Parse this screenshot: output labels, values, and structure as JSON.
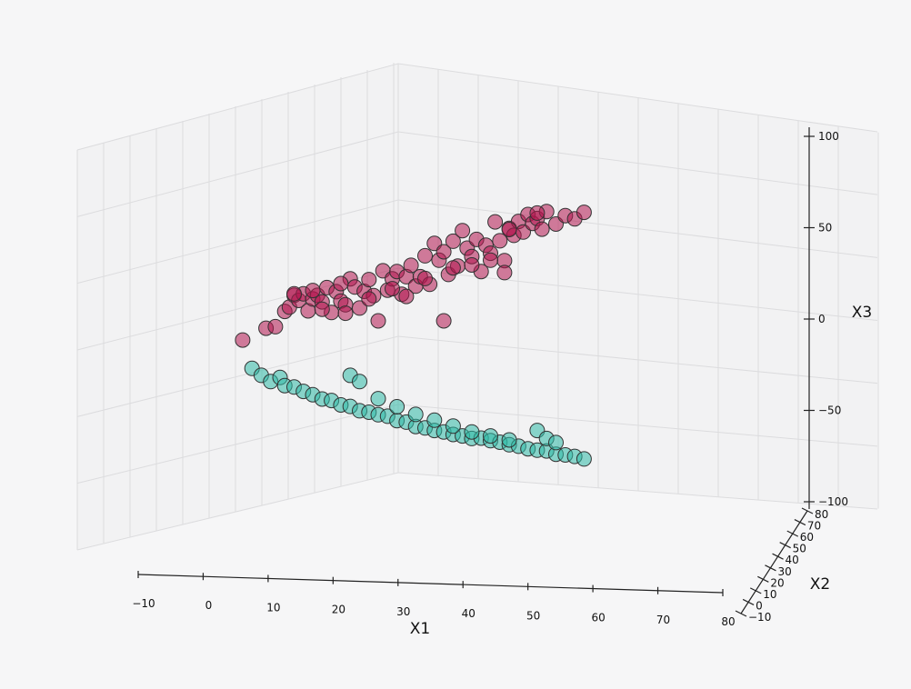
{
  "chart_data": {
    "type": "scatter",
    "dimensions": 3,
    "title": "",
    "xlabel": "X1",
    "ylabel": "X2",
    "zlabel": "X3",
    "xlim": [
      -10,
      80
    ],
    "ylim": [
      -10,
      80
    ],
    "zlim": [
      -100,
      100
    ],
    "xticks": [
      "−10",
      "0",
      "10",
      "20",
      "30",
      "40",
      "50",
      "60",
      "70",
      "80"
    ],
    "yticks": [
      "−10",
      "0",
      "10",
      "20",
      "30",
      "40",
      "50",
      "60",
      "70",
      "80"
    ],
    "zticks": [
      "−100",
      "−50",
      "0",
      "50",
      "100"
    ],
    "grid": true,
    "series": [
      {
        "color": "#b3154f",
        "points": [
          [
            3,
            15,
            -13
          ],
          [
            8,
            20,
            -6
          ],
          [
            10,
            22,
            -5
          ],
          [
            12,
            18,
            3
          ],
          [
            13,
            25,
            6
          ],
          [
            14,
            20,
            12
          ],
          [
            15,
            28,
            10
          ],
          [
            16,
            22,
            13
          ],
          [
            17,
            25,
            4
          ],
          [
            18,
            30,
            11
          ],
          [
            19,
            20,
            12
          ],
          [
            20,
            26,
            9
          ],
          [
            21,
            28,
            17
          ],
          [
            22,
            24,
            3
          ],
          [
            23,
            30,
            15
          ],
          [
            24,
            22,
            9
          ],
          [
            25,
            32,
            8
          ],
          [
            26,
            20,
            21
          ],
          [
            27,
            25,
            17
          ],
          [
            28,
            30,
            6
          ],
          [
            29,
            28,
            15
          ],
          [
            30,
            34,
            22
          ],
          [
            31,
            22,
            12
          ],
          [
            32,
            30,
            -1
          ],
          [
            33,
            26,
            26
          ],
          [
            34,
            32,
            16
          ],
          [
            35,
            30,
            22
          ],
          [
            36,
            40,
            27
          ],
          [
            37,
            34,
            14
          ],
          [
            38,
            28,
            23
          ],
          [
            39,
            36,
            30
          ],
          [
            40,
            30,
            18
          ],
          [
            41,
            38,
            24
          ],
          [
            42,
            34,
            35
          ],
          [
            43,
            40,
            20
          ],
          [
            44,
            36,
            42
          ],
          [
            45,
            38,
            33
          ],
          [
            46,
            42,
            38
          ],
          [
            47,
            36,
            25
          ],
          [
            48,
            44,
            44
          ],
          [
            49,
            40,
            30
          ],
          [
            50,
            46,
            50
          ],
          [
            51,
            42,
            40
          ],
          [
            52,
            48,
            36
          ],
          [
            53,
            44,
            45
          ],
          [
            54,
            50,
            28
          ],
          [
            55,
            46,
            42
          ],
          [
            56,
            50,
            38
          ],
          [
            57,
            48,
            55
          ],
          [
            58,
            52,
            45
          ],
          [
            59,
            50,
            34
          ],
          [
            60,
            54,
            52
          ],
          [
            61,
            52,
            48
          ],
          [
            62,
            56,
            56
          ],
          [
            63,
            54,
            50
          ],
          [
            64,
            58,
            60
          ],
          [
            65,
            56,
            55
          ],
          [
            66,
            60,
            58
          ],
          [
            67,
            58,
            52
          ],
          [
            68,
            62,
            62
          ],
          [
            70,
            60,
            55
          ],
          [
            72,
            64,
            60
          ],
          [
            74,
            62,
            58
          ],
          [
            76,
            66,
            62
          ],
          [
            60,
            40,
            50
          ],
          [
            59,
            36,
            26
          ],
          [
            66,
            30,
            58
          ],
          [
            46,
            20,
            -2
          ],
          [
            20,
            16,
            4
          ],
          [
            25,
            18,
            2
          ],
          [
            30,
            20,
            10
          ],
          [
            35,
            24,
            16
          ],
          [
            38,
            26,
            12
          ],
          [
            42,
            28,
            22
          ],
          [
            48,
            30,
            28
          ],
          [
            52,
            34,
            30
          ],
          [
            56,
            38,
            33
          ],
          [
            14,
            32,
            14
          ],
          [
            18,
            34,
            16
          ],
          [
            24,
            36,
            20
          ]
        ]
      },
      {
        "color": "#2fb9a6",
        "points": [
          [
            5,
            20,
            -28
          ],
          [
            7,
            18,
            -32
          ],
          [
            9,
            22,
            -35
          ],
          [
            11,
            20,
            -33
          ],
          [
            12,
            24,
            -37
          ],
          [
            14,
            22,
            -38
          ],
          [
            16,
            26,
            -40
          ],
          [
            18,
            24,
            -42
          ],
          [
            20,
            28,
            -44
          ],
          [
            22,
            26,
            -45
          ],
          [
            24,
            30,
            -47
          ],
          [
            26,
            28,
            -48
          ],
          [
            28,
            32,
            -50
          ],
          [
            30,
            30,
            -51
          ],
          [
            32,
            34,
            -52
          ],
          [
            34,
            32,
            -53
          ],
          [
            36,
            36,
            -55
          ],
          [
            38,
            34,
            -56
          ],
          [
            40,
            38,
            -58
          ],
          [
            42,
            36,
            -59
          ],
          [
            44,
            40,
            -60
          ],
          [
            46,
            38,
            -61
          ],
          [
            48,
            42,
            -62
          ],
          [
            50,
            40,
            -63
          ],
          [
            52,
            44,
            -64
          ],
          [
            54,
            42,
            -64
          ],
          [
            56,
            46,
            -65
          ],
          [
            58,
            44,
            -66
          ],
          [
            60,
            48,
            -67
          ],
          [
            62,
            46,
            -68
          ],
          [
            64,
            50,
            -69
          ],
          [
            66,
            48,
            -70
          ],
          [
            68,
            52,
            -70
          ],
          [
            70,
            50,
            -72
          ],
          [
            72,
            54,
            -72
          ],
          [
            74,
            52,
            -73
          ],
          [
            76,
            56,
            -74
          ],
          [
            66,
            40,
            -60
          ],
          [
            68,
            44,
            -64
          ],
          [
            70,
            46,
            -66
          ],
          [
            26,
            18,
            -32
          ],
          [
            28,
            22,
            -35
          ],
          [
            32,
            26,
            -44
          ],
          [
            36,
            30,
            -48
          ],
          [
            40,
            32,
            -52
          ],
          [
            44,
            34,
            -55
          ],
          [
            48,
            36,
            -58
          ],
          [
            52,
            38,
            -61
          ],
          [
            56,
            40,
            -63
          ],
          [
            60,
            42,
            -65
          ]
        ]
      }
    ]
  }
}
